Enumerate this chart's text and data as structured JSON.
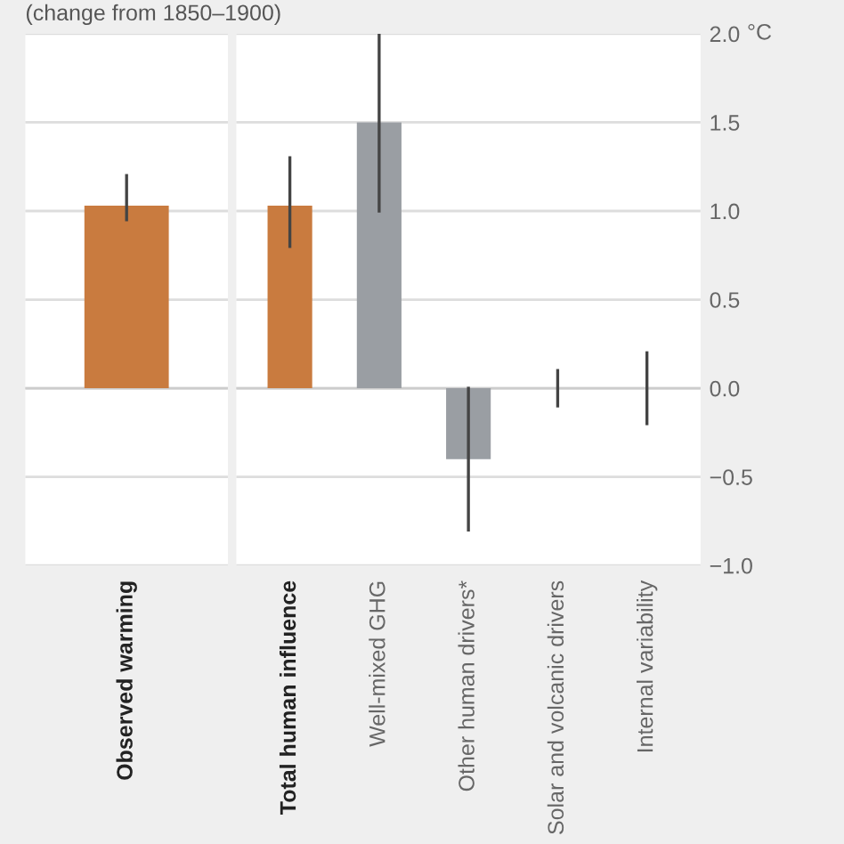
{
  "chart_data": [
    {
      "type": "bar",
      "title": "(change from 1850–1900)",
      "categories": [
        "Observed warming"
      ],
      "colors": [
        "#c97b3f"
      ],
      "values": [
        1.03
      ],
      "errors": [
        [
          0.95,
          1.2
        ]
      ],
      "ylim": [
        -1.0,
        2.0
      ],
      "yticks": [
        -1.0,
        -0.5,
        0.0,
        0.5,
        1.0,
        1.5,
        2.0
      ],
      "grid": "y",
      "tick_labels": "x"
    },
    {
      "type": "bar",
      "categories": [
        "Total human influence",
        "Well-mixed GHG",
        "Other human drivers*",
        "Solar and volcanic drivers",
        "Internal variability"
      ],
      "colors": [
        "#c97b3f",
        "#9a9ea3",
        "#9a9ea3",
        "#9a9ea3",
        "#9a9ea3"
      ],
      "values": [
        1.03,
        1.5,
        -0.4,
        0.0,
        0.0
      ],
      "errors": [
        [
          0.8,
          1.3
        ],
        [
          1.0,
          2.0
        ],
        [
          -0.8,
          0.0
        ],
        [
          -0.1,
          0.1
        ],
        [
          -0.2,
          0.2
        ]
      ],
      "ylabel": "°C",
      "ylim": [
        -1.0,
        2.0
      ],
      "yticks": [
        {
          "value": -1.0,
          "label": "−1.0"
        },
        {
          "value": -0.5,
          "label": "−0.5"
        },
        {
          "value": 0,
          "label": "0.0"
        },
        0.5,
        {
          "value": 1,
          "label": "1.0"
        },
        1.5,
        {
          "value": 2,
          "label": "2.0"
        }
      ],
      "grid": "y"
    }
  ]
}
